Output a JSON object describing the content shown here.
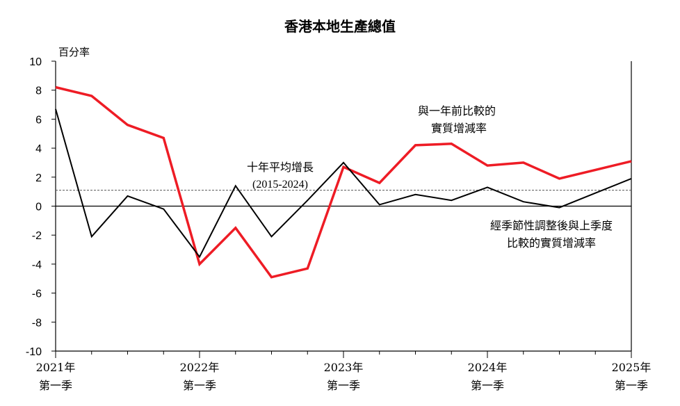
{
  "chart_data": {
    "type": "line",
    "title": "香港本地生產總值",
    "ylabel": "百分率",
    "ylim": [
      -10,
      10
    ],
    "yticks": [
      10,
      8,
      6,
      4,
      2,
      0,
      -2,
      -4,
      -6,
      -8,
      -10
    ],
    "xlabels": [
      {
        "year": "2021年",
        "quarter": "第一季",
        "index": 0
      },
      {
        "year": "2022年",
        "quarter": "第一季",
        "index": 4
      },
      {
        "year": "2023年",
        "quarter": "第一季",
        "index": 8
      },
      {
        "year": "2024年",
        "quarter": "第一季",
        "index": 12
      },
      {
        "year": "2025年",
        "quarter": "第一季",
        "index": 16
      }
    ],
    "x": [
      "2021Q1",
      "2021Q2",
      "2021Q3",
      "2021Q4",
      "2022Q1",
      "2022Q2",
      "2022Q3",
      "2022Q4",
      "2023Q1",
      "2023Q2",
      "2023Q3",
      "2023Q4",
      "2024Q1",
      "2024Q2",
      "2024Q3",
      "2024Q4",
      "2025Q1"
    ],
    "series": [
      {
        "name": "與一年前比較的實質增減率",
        "color": "#ee1c25",
        "values": [
          8.2,
          7.6,
          5.6,
          4.7,
          -4.0,
          -1.5,
          -4.9,
          -4.3,
          2.7,
          1.6,
          4.2,
          4.3,
          2.8,
          3.0,
          1.9,
          2.5,
          3.1
        ]
      },
      {
        "name": "經季節性調整後與上季度比較的實質增減率",
        "color": "#000000",
        "values": [
          6.7,
          -2.1,
          0.7,
          -0.2,
          -3.5,
          1.4,
          -2.1,
          0.4,
          3.0,
          0.1,
          0.8,
          0.4,
          1.3,
          0.3,
          -0.1,
          0.9,
          1.9
        ]
      }
    ],
    "reference_line": {
      "value": 1.1,
      "style": "dashed",
      "color": "#555555"
    },
    "annotations": {
      "red_line1": "與一年前比較的",
      "red_line2": "實質增減率",
      "black_line1": "經季節性調整後與上季度",
      "black_line2": "比較的實質增減率",
      "avg_line1": "十年平均增長",
      "avg_line2": "(2015-2024)"
    },
    "grid": false
  }
}
